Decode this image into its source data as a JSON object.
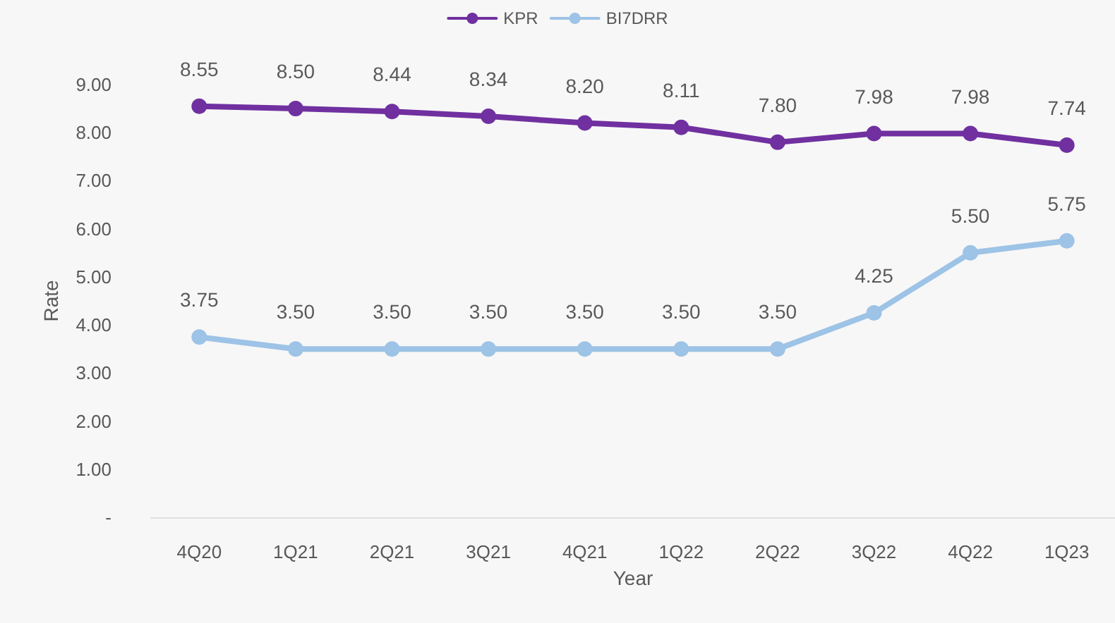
{
  "chart_data": {
    "type": "line",
    "xlabel": "Year",
    "ylabel": "Rate",
    "categories": [
      "4Q20",
      "1Q21",
      "2Q21",
      "3Q21",
      "4Q21",
      "1Q22",
      "2Q22",
      "3Q22",
      "4Q22",
      "1Q23"
    ],
    "series": [
      {
        "name": "KPR",
        "color": "#7030a0",
        "values": [
          8.55,
          8.5,
          8.44,
          8.34,
          8.2,
          8.11,
          7.8,
          7.98,
          7.98,
          7.74
        ],
        "value_labels": [
          "8.55",
          "8.50",
          "8.44",
          "8.34",
          "8.20",
          "8.11",
          "7.80",
          "7.98",
          "7.98",
          "7.74"
        ]
      },
      {
        "name": "BI7DRR",
        "color": "#9dc3e6",
        "values": [
          3.75,
          3.5,
          3.5,
          3.5,
          3.5,
          3.5,
          3.5,
          4.25,
          5.5,
          5.75
        ],
        "value_labels": [
          "3.75",
          "3.50",
          "3.50",
          "3.50",
          "3.50",
          "3.50",
          "3.50",
          "4.25",
          "5.50",
          "5.75"
        ]
      }
    ],
    "ylim": [
      0,
      9
    ],
    "yticks": [
      {
        "value": 0,
        "label": "-"
      },
      {
        "value": 1,
        "label": "1.00"
      },
      {
        "value": 2,
        "label": "2.00"
      },
      {
        "value": 3,
        "label": "3.00"
      },
      {
        "value": 4,
        "label": "4.00"
      },
      {
        "value": 5,
        "label": "5.00"
      },
      {
        "value": 6,
        "label": "6.00"
      },
      {
        "value": 7,
        "label": "7.00"
      },
      {
        "value": 8,
        "label": "8.00"
      },
      {
        "value": 9,
        "label": "9.00"
      }
    ],
    "grid": false,
    "legend": "top",
    "marker": "circle",
    "line_style": "solid"
  }
}
